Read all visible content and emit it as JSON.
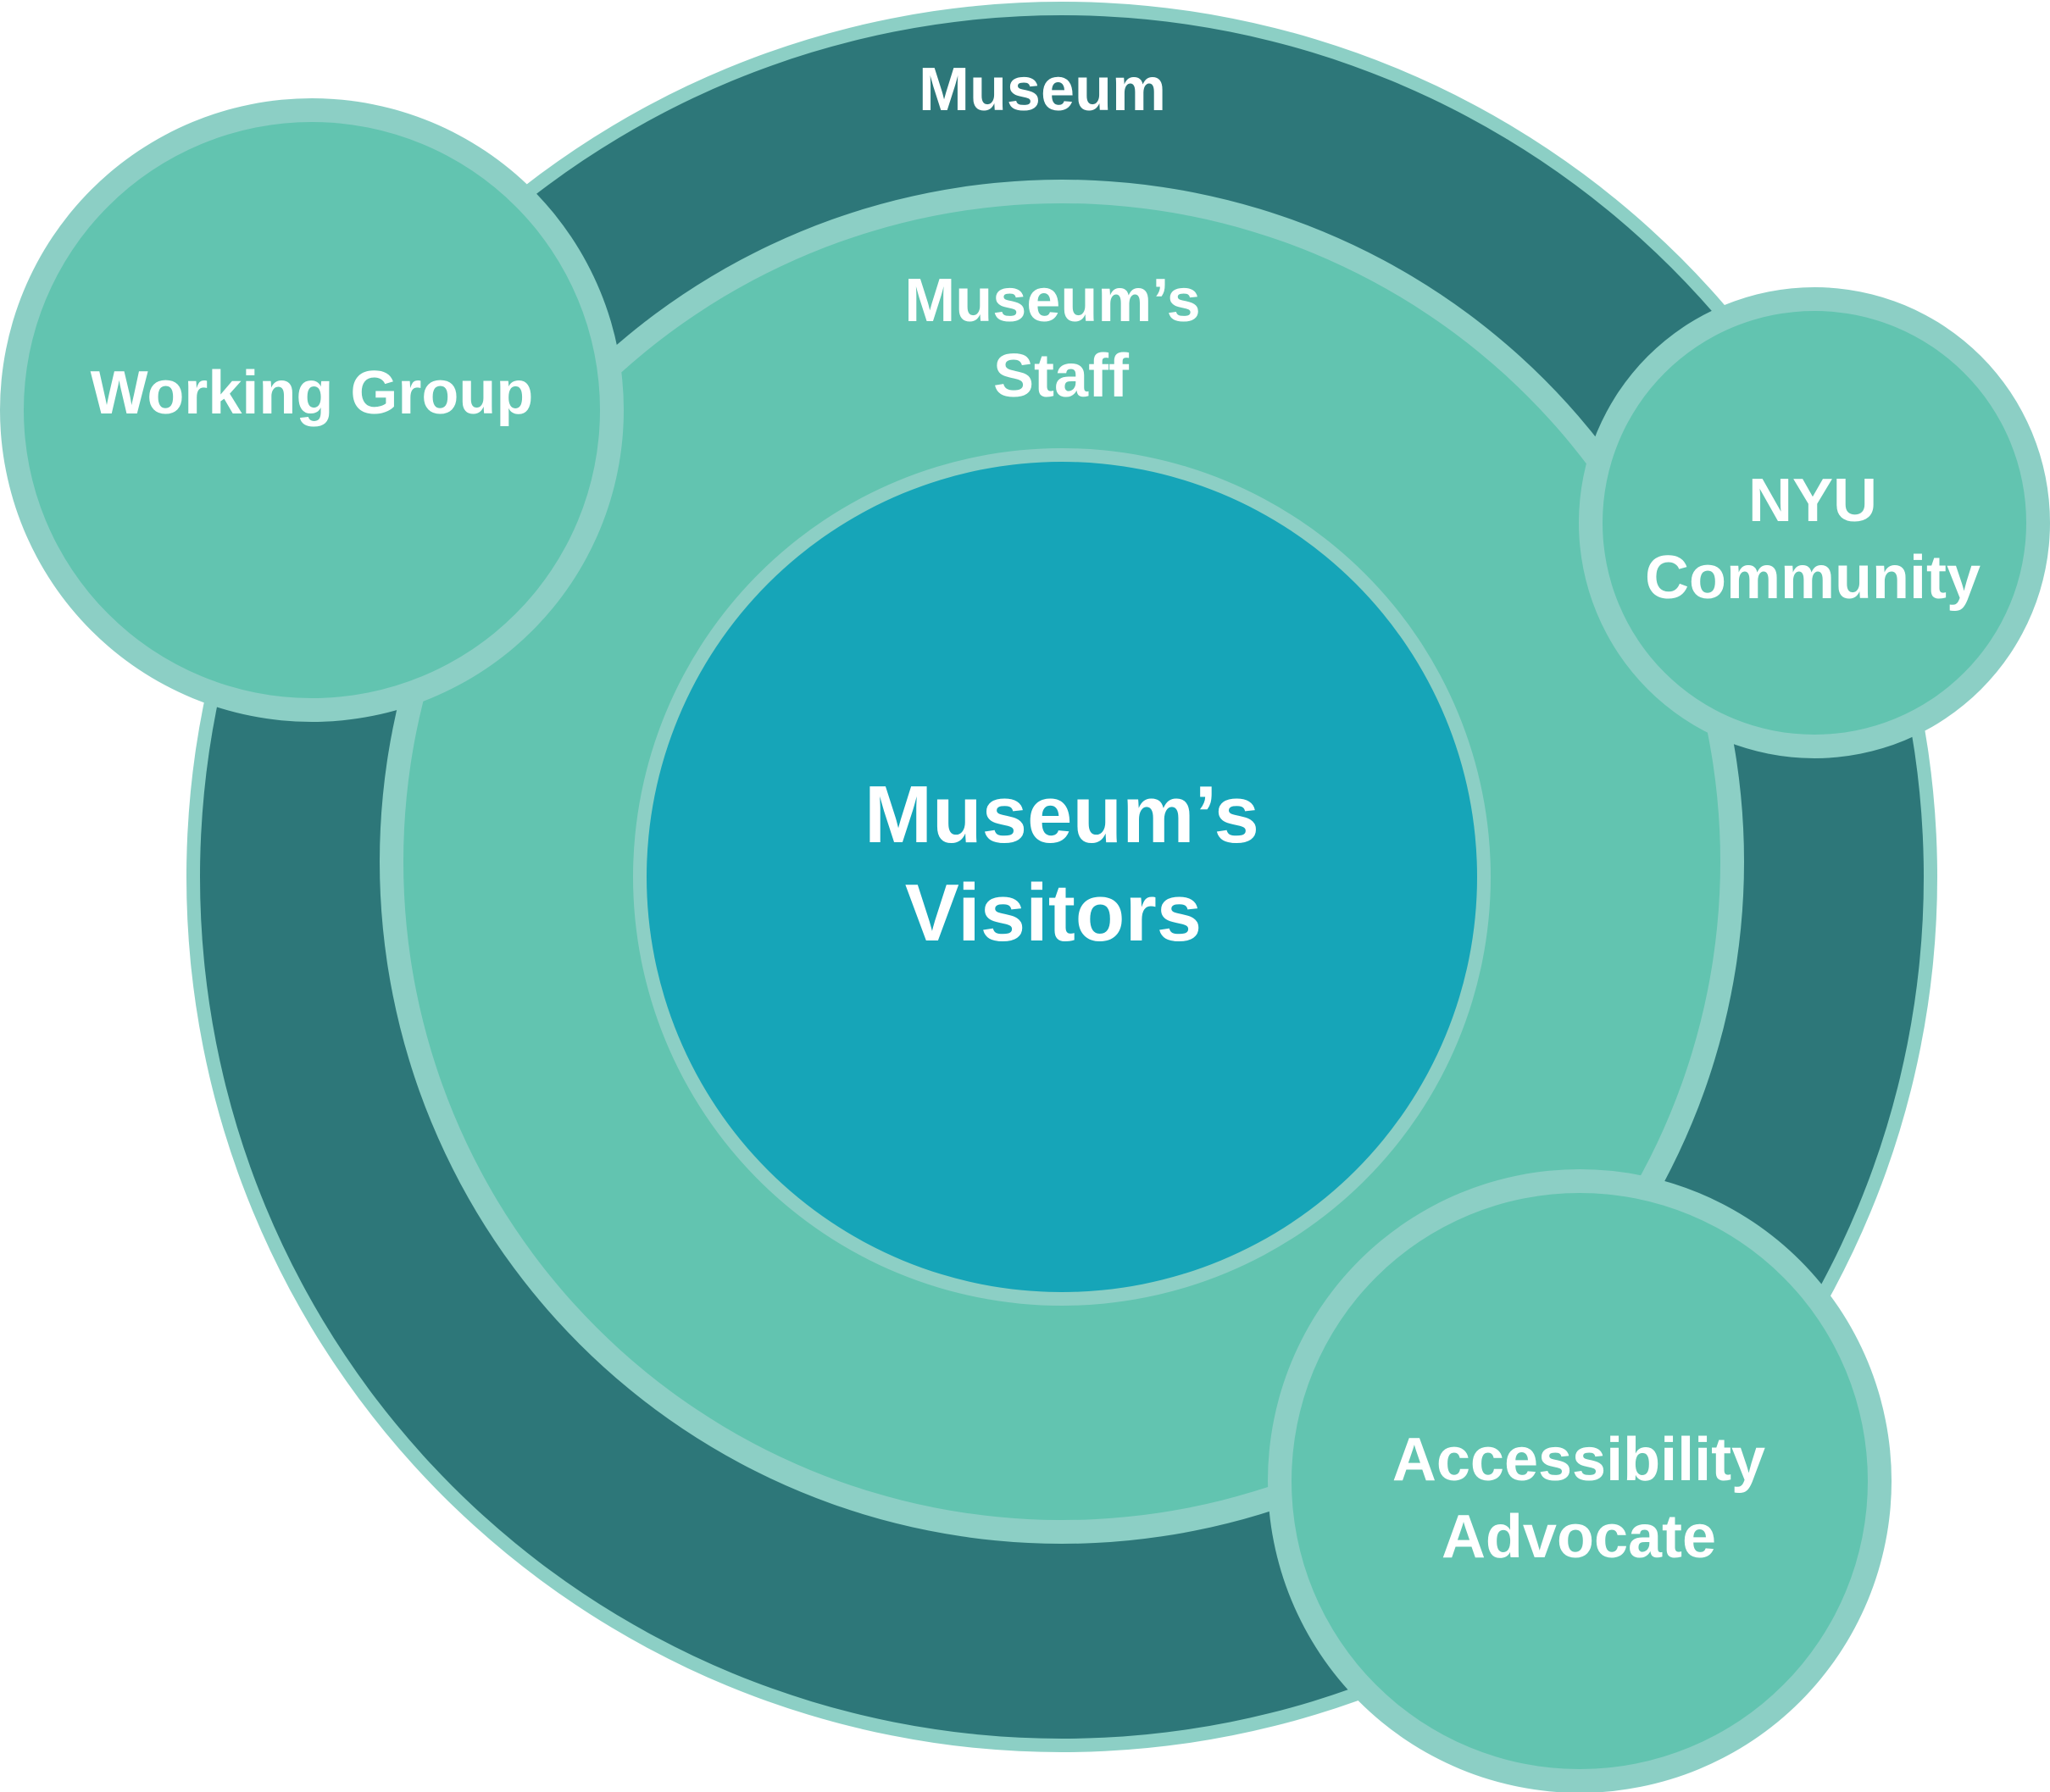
{
  "colors": {
    "outline": "#8ccfc5",
    "museum_ring": "#2d7779",
    "staff_ring": "#62c4b0",
    "visitors_core": "#16a5b8",
    "satellite": "#62c4b0",
    "text": "#ffffff"
  },
  "rings": {
    "museum": {
      "label": "Museum"
    },
    "staff": {
      "line1": "Museum’s",
      "line2": "Staff"
    },
    "visitors": {
      "line1": "Museum’s",
      "line2": "Visitors"
    }
  },
  "satellites": {
    "working_group": {
      "label": "Working Group"
    },
    "nyu_community": {
      "line1": "NYU",
      "line2": "Community"
    },
    "accessibility_advocate": {
      "line1": "Accessibility",
      "line2": "Advocate"
    }
  }
}
